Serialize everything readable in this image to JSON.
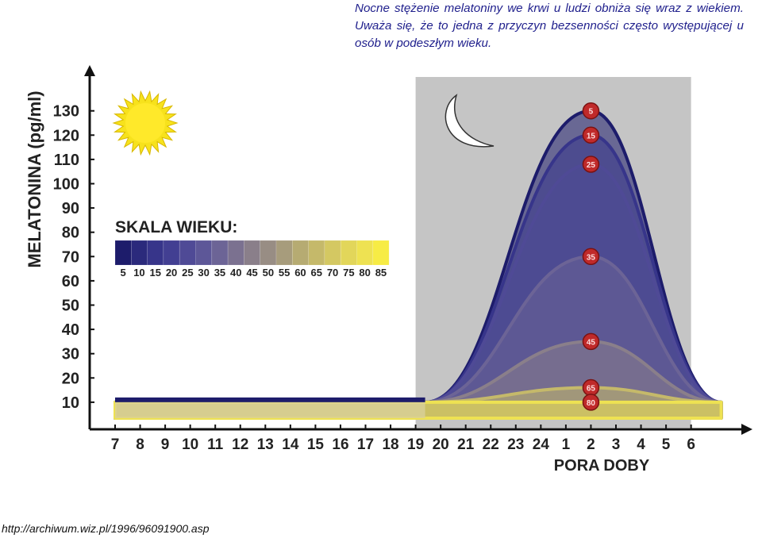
{
  "caption": "Nocne stężenie melatoniny we krwi u ludzi obniża się wraz z wiekiem. Uważa się, że to jedna z przyczyn bezsenności często występującej u osób w podeszłym wieku.",
  "source_url": "http://archiwum.wiz.pl/1996/96091900.asp",
  "icons": {
    "sun": "sun-icon",
    "moon": "crescent-moon-icon"
  },
  "chart_data": {
    "type": "area",
    "ylabel": "MELATONINA (pg/ml)",
    "xlabel": "PORA DOBY",
    "x_categories": [
      "7",
      "8",
      "9",
      "10",
      "11",
      "12",
      "13",
      "14",
      "15",
      "16",
      "17",
      "18",
      "19",
      "20",
      "21",
      "22",
      "23",
      "24",
      "1",
      "2",
      "3",
      "4",
      "5",
      "6"
    ],
    "y_ticks": [
      "130",
      "120",
      "110",
      "100",
      "90",
      "80",
      "70",
      "60",
      "50",
      "40",
      "30",
      "20",
      "10"
    ],
    "ylim": [
      0,
      140
    ],
    "night_shading": {
      "from": "19",
      "to": "6",
      "color": "#c5c5c5"
    },
    "peak_time": "2",
    "baseline": 10,
    "legend": {
      "title": "SKALA WIEKU:",
      "labels": [
        "5",
        "10",
        "15",
        "20",
        "25",
        "30",
        "35",
        "40",
        "45",
        "50",
        "55",
        "60",
        "65",
        "70",
        "75",
        "80",
        "85"
      ],
      "colors": [
        "#1d1c6b",
        "#2b2a7c",
        "#37358a",
        "#423f92",
        "#4f4a96",
        "#5d5798",
        "#6c6496",
        "#7b7190",
        "#8a7f8a",
        "#988d84",
        "#a79c7c",
        "#b6ab72",
        "#c5b96a",
        "#d4c862",
        "#e2d65a",
        "#eee252",
        "#f7ec45"
      ]
    },
    "series": [
      {
        "name": "5",
        "peak": 130,
        "color": "#1d1c6b",
        "marker_label": "5"
      },
      {
        "name": "15",
        "peak": 120,
        "color": "#37358a",
        "marker_label": "15"
      },
      {
        "name": "25",
        "peak": 108,
        "color": "#4f4a96",
        "marker_label": "25"
      },
      {
        "name": "35",
        "peak": 70,
        "color": "#6c6496",
        "marker_label": "35"
      },
      {
        "name": "45",
        "peak": 35,
        "color": "#8a7f8a",
        "marker_label": "45"
      },
      {
        "name": "65",
        "peak": 16,
        "color": "#c5b96a",
        "marker_label": "65"
      },
      {
        "name": "80",
        "peak": 10,
        "color": "#eee252",
        "marker_label": "80"
      }
    ]
  }
}
